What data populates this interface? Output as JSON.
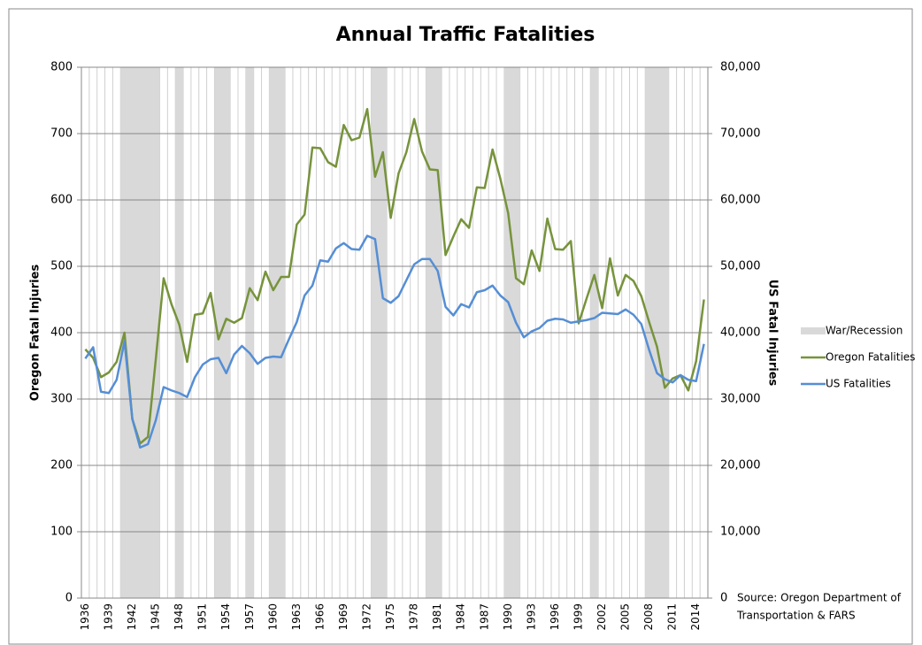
{
  "chart_data": {
    "type": "line",
    "title": "Annual Traffic Fatalities",
    "y_label": "Oregon Fatal Injuries",
    "y2_label": "US Fatal Injuries",
    "annotation": [
      "Source: Oregon Department of",
      "Transportation & FARS"
    ],
    "categories": [
      "1936",
      null,
      null,
      "1939",
      null,
      null,
      "1942",
      null,
      null,
      "1945",
      null,
      null,
      "1948",
      null,
      null,
      "1951",
      null,
      null,
      "1954",
      null,
      null,
      "1957",
      null,
      null,
      "1960",
      null,
      null,
      "1963",
      null,
      null,
      "1966",
      null,
      null,
      "1969",
      null,
      null,
      "1972",
      null,
      null,
      "1975",
      null,
      null,
      "1978",
      null,
      null,
      "1981",
      null,
      null,
      "1984",
      null,
      null,
      "1987",
      null,
      null,
      "1990",
      null,
      null,
      "1993",
      null,
      null,
      "1996",
      null,
      null,
      "1999",
      null,
      null,
      "2002",
      null,
      null,
      "2005",
      null,
      null,
      "2008",
      null,
      null,
      "2011",
      null,
      null,
      "2014",
      null
    ],
    "shading": {
      "name": "War/Recession",
      "color": "#d9d9d9",
      "spans": [
        [
          1941,
          1945
        ],
        [
          1948,
          1948
        ],
        [
          1953,
          1954
        ],
        [
          1957,
          1957
        ],
        [
          1960,
          1961
        ],
        [
          1973,
          1974
        ],
        [
          1980,
          1981
        ],
        [
          1990,
          1991
        ],
        [
          2001,
          2001
        ],
        [
          2008,
          2010
        ]
      ]
    },
    "series": [
      {
        "name": "Oregon Fatalities",
        "color": "#77933c",
        "axis": "y",
        "values": [
          375,
          362,
          333,
          340,
          356,
          400,
          270,
          233,
          243,
          360,
          482,
          443,
          412,
          356,
          427,
          429,
          460,
          390,
          421,
          415,
          422,
          467,
          449,
          492,
          464,
          484,
          484,
          563,
          578,
          679,
          678,
          657,
          650,
          713,
          690,
          694,
          737,
          635,
          672,
          573,
          640,
          672,
          722,
          673,
          646,
          645,
          517,
          545,
          571,
          558,
          619,
          618,
          676,
          632,
          580,
          482,
          473,
          524,
          493,
          572,
          526,
          525,
          538,
          414,
          451,
          487,
          437,
          512,
          456,
          487,
          478,
          455,
          416,
          379,
          317,
          331,
          336,
          313,
          357,
          450
        ]
      },
      {
        "name": "US Fatalities",
        "color": "#558ed5",
        "axis": "y2",
        "values": [
          36100,
          37800,
          31100,
          30900,
          32900,
          38700,
          27000,
          22700,
          23200,
          26800,
          31800,
          31300,
          30900,
          30300,
          33300,
          35200,
          36000,
          36200,
          33900,
          36700,
          38000,
          36900,
          35300,
          36200,
          36400,
          36300,
          39000,
          41600,
          45600,
          47100,
          50900,
          50700,
          52700,
          53500,
          52600,
          52500,
          54600,
          54100,
          45200,
          44500,
          45500,
          47900,
          50300,
          51100,
          51100,
          49300,
          43900,
          42600,
          44300,
          43800,
          46100,
          46400,
          47100,
          45600,
          44600,
          41500,
          39300,
          40200,
          40700,
          41800,
          42100,
          42000,
          41500,
          41700,
          41900,
          42200,
          43000,
          42900,
          42800,
          43500,
          42700,
          41300,
          37400,
          33900,
          33000,
          32500,
          33600,
          32900,
          32700,
          38300
        ]
      }
    ],
    "ylim": [
      0,
      800
    ],
    "yticks": [
      0,
      100,
      200,
      300,
      400,
      500,
      600,
      700,
      800
    ],
    "y2lim": [
      0,
      80000
    ],
    "y2ticks": [
      0,
      {
        "value": 10000,
        "label": "10,000"
      },
      {
        "value": 20000,
        "label": "20,000"
      },
      {
        "value": 30000,
        "label": "30,000"
      },
      {
        "value": 40000,
        "label": "40,000"
      },
      {
        "value": 50000,
        "label": "50,000"
      },
      {
        "value": 60000,
        "label": "60,000"
      },
      {
        "value": 70000,
        "label": "70,000"
      },
      {
        "value": 80000,
        "label": "80,000"
      }
    ],
    "grid": true
  }
}
